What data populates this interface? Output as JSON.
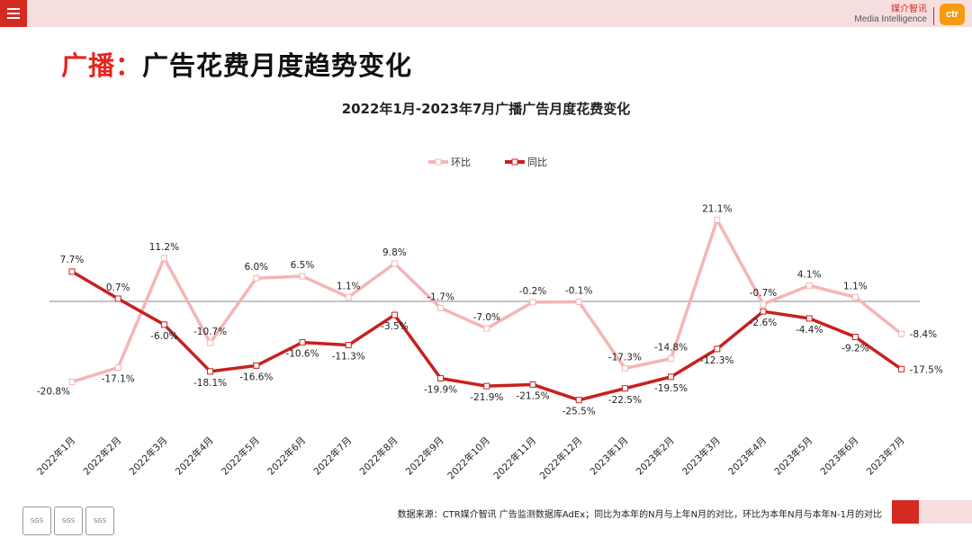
{
  "header": {
    "brand_cn": "媒介智讯",
    "brand_en": "Media Intelligence",
    "brand_logo": "ctr"
  },
  "page": {
    "title_highlight": "广播：",
    "title_rest": "广告花费月度趋势变化"
  },
  "footer": {
    "note": "数据来源：CTR媒介智讯 广告监测数据库AdEx；同比为本年的N月与上年N月的对比，环比为本年N月与本年N-1月的对比",
    "cert_label": "SGS"
  },
  "colors": {
    "accent": "#d42a22",
    "series_mom": "#f5b5b5",
    "series_yoy": "#c8201f"
  },
  "chart_data": {
    "type": "line",
    "title": "2022年1月-2023年7月广播广告月度花费变化",
    "categories": [
      "2022年1月",
      "2022年2月",
      "2022年3月",
      "2022年4月",
      "2022年5月",
      "2022年6月",
      "2022年7月",
      "2022年8月",
      "2022年9月",
      "2022年10月",
      "2022年11月",
      "2022年12月",
      "2023年1月",
      "2023年2月",
      "2023年3月",
      "2023年4月",
      "2023年5月",
      "2023年6月",
      "2023年7月"
    ],
    "series": [
      {
        "name": "环比",
        "values": [
          -20.8,
          -17.1,
          11.2,
          -10.7,
          6.0,
          6.5,
          1.1,
          9.8,
          -1.7,
          -7.0,
          -0.2,
          -0.1,
          -17.3,
          -14.8,
          21.1,
          -0.7,
          4.1,
          1.1,
          -8.4
        ],
        "labels": [
          "-20.8%",
          "-17.1%",
          "11.2%",
          "-10.7%",
          "6.0%",
          "6.5%",
          "1.1%",
          "9.8%",
          "-1.7%",
          "-7.0%",
          "-0.2%",
          "-0.1%",
          "-17.3%",
          "-14.8%",
          "21.1%",
          "-0.7%",
          "4.1%",
          "1.1%",
          "-8.4%"
        ]
      },
      {
        "name": "同比",
        "values": [
          7.7,
          0.7,
          -6.0,
          -18.1,
          -16.6,
          -10.6,
          -11.3,
          -3.5,
          -19.9,
          -21.9,
          -21.5,
          -25.5,
          -22.5,
          -19.5,
          -12.3,
          -2.6,
          -4.4,
          -9.2,
          -17.5
        ],
        "labels": [
          "7.7%",
          "0.7%",
          "-6.0%",
          "-18.1%",
          "-16.6%",
          "-10.6%",
          "-11.3%",
          "-3.5%",
          "-19.9%",
          "-21.9%",
          "-21.5%",
          "-25.5%",
          "-22.5%",
          "-19.5%",
          "-12.3%",
          "-2.6%",
          "-4.4%",
          "-9.2%",
          "-17.5%"
        ]
      }
    ],
    "ylim": [
      -30,
      25
    ],
    "grid": false,
    "legend_position": "top-center"
  }
}
